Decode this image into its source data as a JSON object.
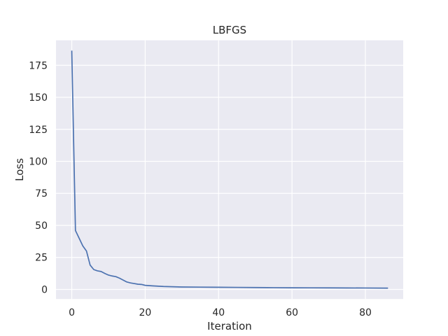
{
  "chart_data": {
    "type": "line",
    "title": "LBFGS",
    "xlabel": "Iteration",
    "ylabel": "Loss",
    "xlim": [
      -4.3,
      90.3
    ],
    "ylim": [
      -7.5,
      194.5
    ],
    "xticks": [
      0,
      20,
      40,
      60,
      80
    ],
    "yticks": [
      0,
      25,
      50,
      75,
      100,
      125,
      150,
      175
    ],
    "grid": true,
    "legend": "none",
    "background_color": "#eaeaf2",
    "grid_color": "#ffffff",
    "line_color": "#4c72b0",
    "series": [
      {
        "x": [
          0,
          1,
          2,
          3,
          4,
          5,
          6,
          7,
          8,
          9,
          10,
          11,
          12,
          13,
          14,
          15,
          16,
          17,
          18,
          19,
          20,
          22,
          25,
          30,
          35,
          40,
          45,
          50,
          55,
          60,
          65,
          70,
          75,
          80,
          86
        ],
        "values": [
          186,
          46,
          40,
          34,
          30,
          19,
          15.5,
          14.5,
          14,
          12.5,
          11.2,
          10.5,
          10,
          8.8,
          7.3,
          5.8,
          5.1,
          4.6,
          4.1,
          3.9,
          3.2,
          2.8,
          2.3,
          1.9,
          1.8,
          1.7,
          1.6,
          1.5,
          1.4,
          1.3,
          1.25,
          1.2,
          1.15,
          1.1,
          1.0
        ]
      }
    ]
  }
}
